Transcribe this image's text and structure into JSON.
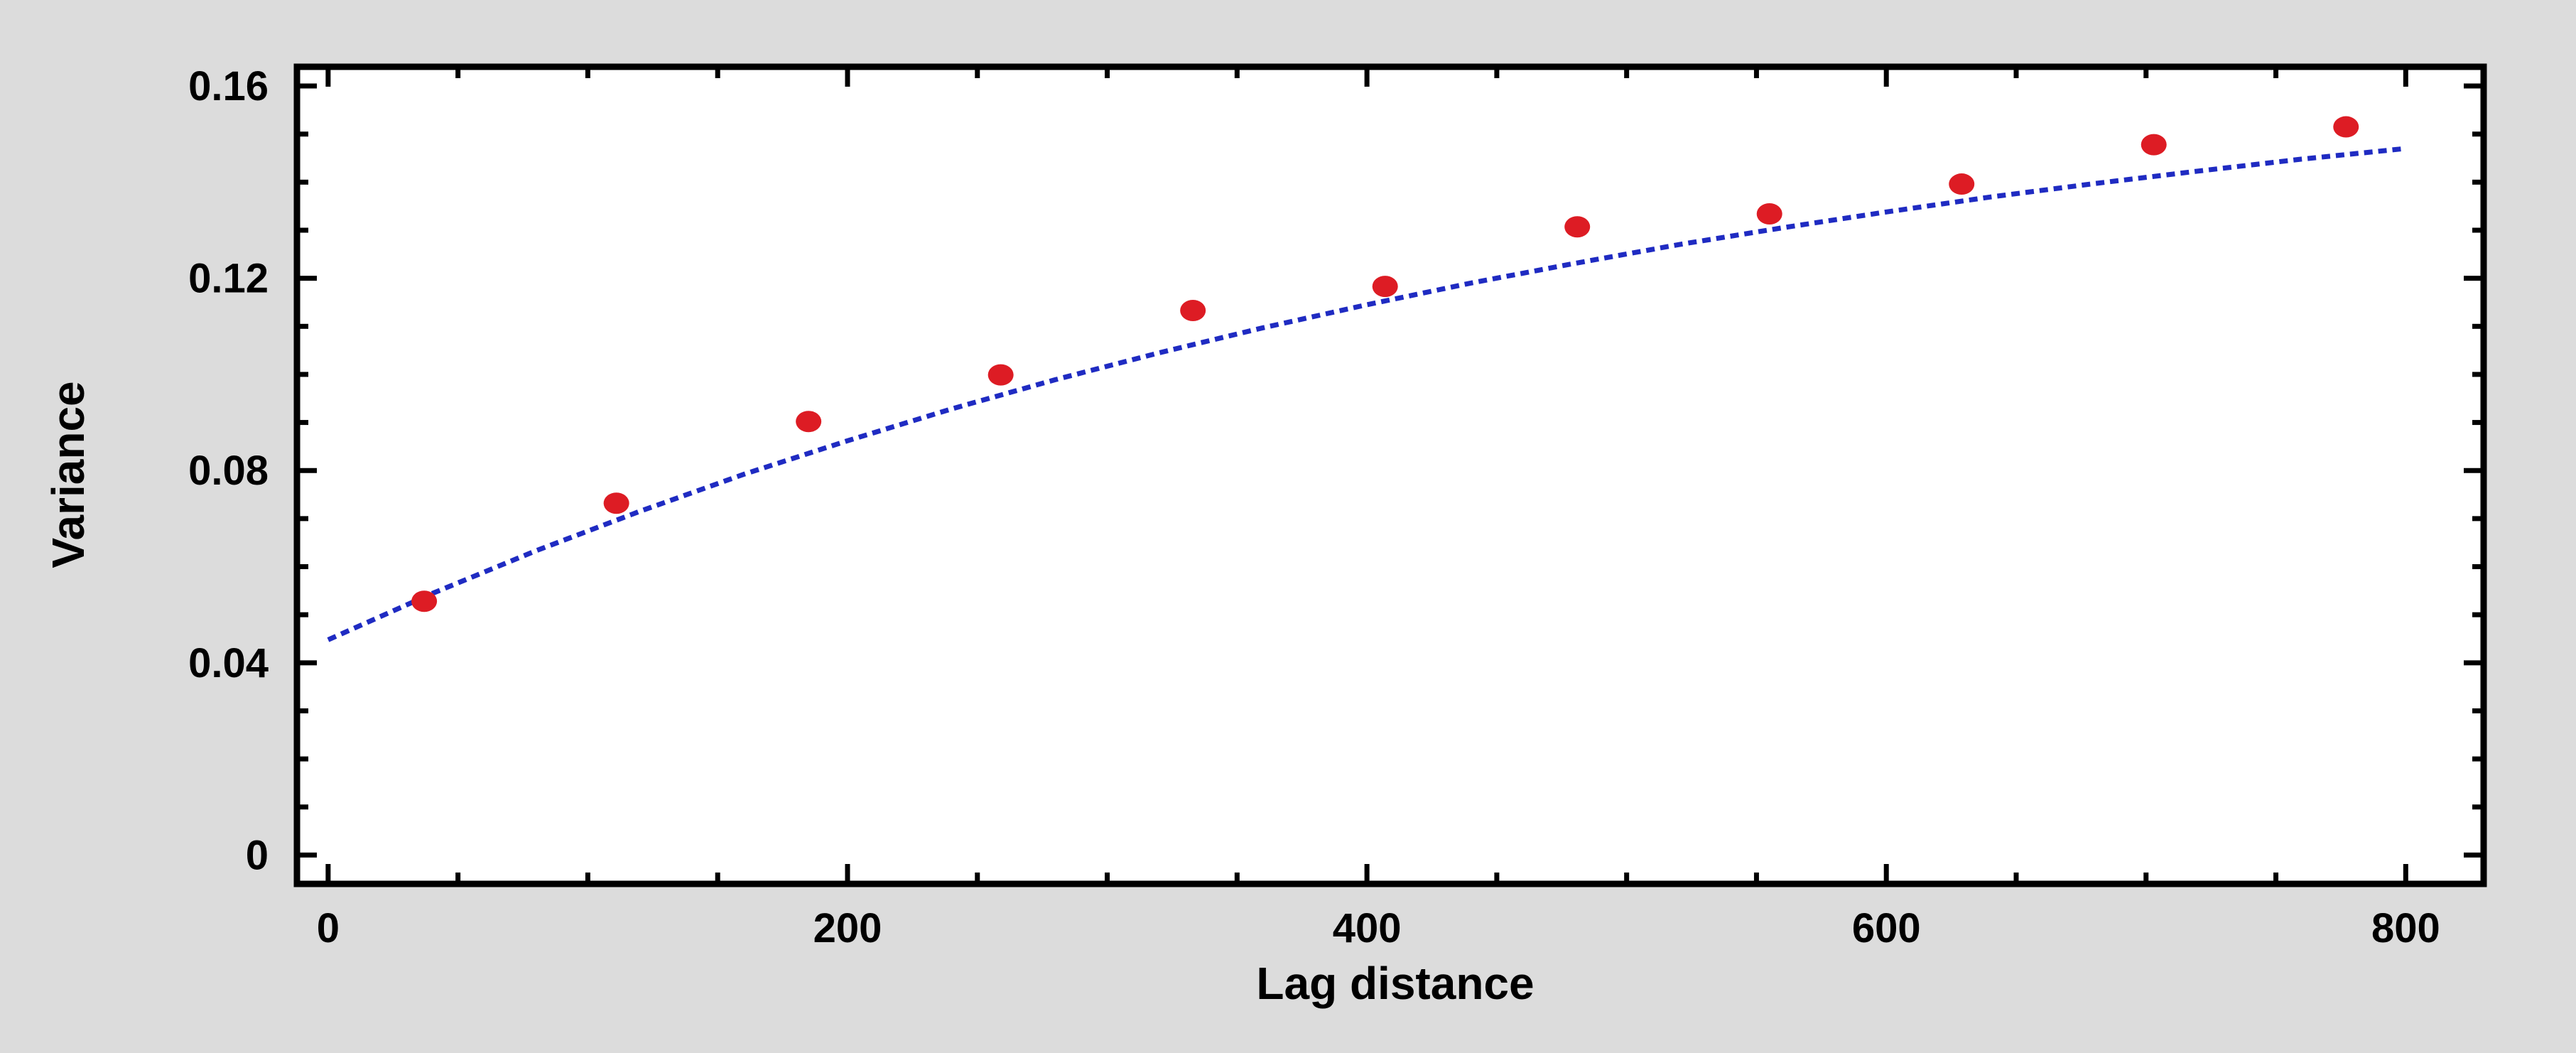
{
  "chart_data": {
    "type": "scatter",
    "title": "",
    "xlabel": "Lag distance",
    "ylabel": "Variance",
    "xlim": [
      -12,
      830
    ],
    "ylim": [
      -0.006,
      0.164
    ],
    "xticks": [
      0,
      200,
      400,
      600,
      800
    ],
    "xtick_labels": [
      "0",
      "200",
      "400",
      "600",
      "800"
    ],
    "yticks": [
      0,
      0.04,
      0.08,
      0.12,
      0.16
    ],
    "ytick_labels": [
      "0",
      "0.04",
      "0.08",
      "0.12",
      "0.16"
    ],
    "x_minor_tick_step": 50,
    "y_minor_tick_step": 0.01,
    "grid": false,
    "legend": "none",
    "background_color": "#dcdcdc",
    "plot_background_color": "#ffffff",
    "point_color": "#dd1c24",
    "line_color": "#1f2bc2",
    "series": [
      {
        "kind": "points",
        "x": [
          37,
          111,
          185,
          259,
          333,
          407,
          481,
          555,
          629,
          703,
          777
        ],
        "y": [
          0.0528,
          0.0732,
          0.0902,
          0.0999,
          0.1133,
          0.1183,
          0.1307,
          0.1334,
          0.1396,
          0.1478,
          0.1515
        ]
      },
      {
        "kind": "fitted-line",
        "x": [
          0,
          40,
          80,
          120,
          160,
          200,
          240,
          280,
          320,
          360,
          400,
          440,
          480,
          520,
          560,
          600,
          640,
          680,
          720,
          760,
          800
        ],
        "y": [
          0.0448,
          0.0544,
          0.0633,
          0.0715,
          0.0792,
          0.0862,
          0.0928,
          0.0989,
          0.1045,
          0.1097,
          0.1145,
          0.119,
          0.1231,
          0.127,
          0.1305,
          0.1338,
          0.1369,
          0.1397,
          0.1423,
          0.1448,
          0.147
        ]
      }
    ]
  }
}
